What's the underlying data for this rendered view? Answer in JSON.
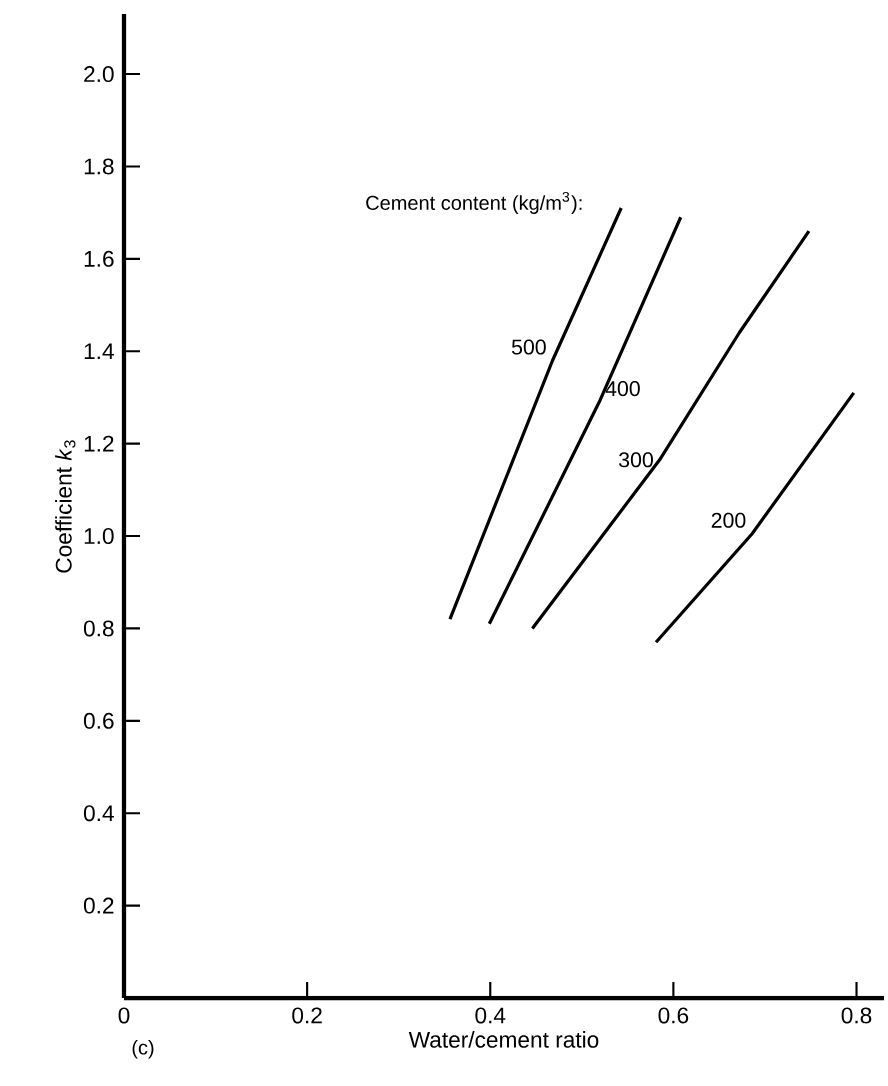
{
  "chart_data": {
    "type": "line",
    "xlabel": "Water/cement ratio",
    "ylabel": "Coefficient *k*$_{3}$",
    "annotations": [
      "Cement content (kg/m$^{3}$):",
      "(c)"
    ],
    "xlim": [
      0,
      0.83
    ],
    "ylim": [
      0,
      2.13
    ],
    "xticks": [
      0,
      0.2,
      0.4,
      0.6,
      0.8
    ],
    "yticks": [
      0.2,
      0.4,
      0.6,
      0.8,
      {
        "value": 1.0,
        "label": "1.0"
      },
      1.2,
      1.4,
      1.6,
      1.8,
      {
        "value": 2.0,
        "label": "2.0"
      }
    ],
    "grid": false,
    "marker": "none",
    "line_style": "solid",
    "series": [
      {
        "name": "500",
        "color": "#000000",
        "x": [
          0.356,
          0.468,
          0.543
        ],
        "values": [
          0.82,
          1.38,
          1.71
        ]
      },
      {
        "name": "400",
        "color": "#000000",
        "x": [
          0.399,
          0.519,
          0.608
        ],
        "values": [
          0.81,
          1.29,
          1.69
        ]
      },
      {
        "name": "300",
        "color": "#000000",
        "x": [
          0.446,
          0.585,
          0.672,
          0.748
        ],
        "values": [
          0.8,
          1.165,
          1.44,
          1.66
        ]
      },
      {
        "name": "200",
        "color": "#000000",
        "x": [
          0.581,
          0.686,
          0.797
        ],
        "values": [
          0.77,
          1.005,
          1.31
        ]
      }
    ]
  }
}
